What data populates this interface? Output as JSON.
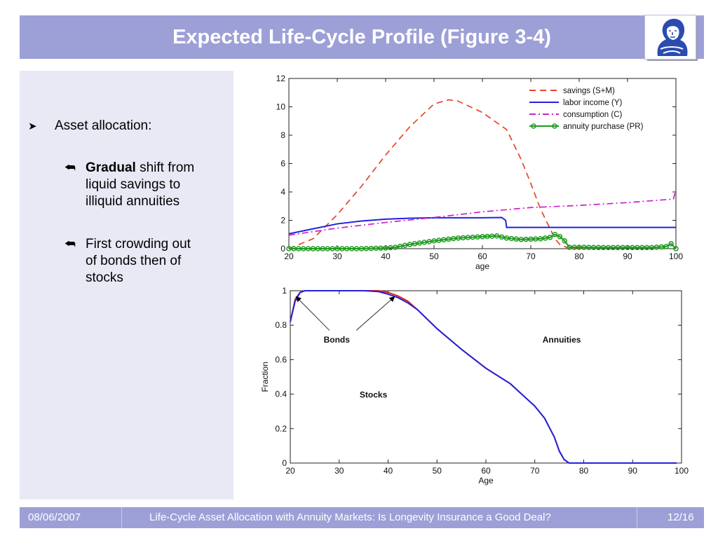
{
  "header": {
    "title": "Expected Life-Cycle Profile (Figure 3-4)",
    "logo_icon": "goethe-portrait-logo"
  },
  "sidebar": {
    "bullet": "Asset allocation:",
    "subbullets": [
      {
        "bold": "Gradual",
        "line1_rest": " shift from",
        "line2": "liquid savings to",
        "line3": "illiquid annuities"
      },
      {
        "line1": "First crowding out",
        "line2": "of bonds then of",
        "line3": "stocks"
      }
    ]
  },
  "footer": {
    "date": "08/06/2007",
    "title": "Life-Cycle Asset Allocation with Annuity Markets: Is Longevity Insurance a Good Deal?",
    "page": "12/16"
  },
  "chart_data": [
    {
      "type": "line",
      "xlabel": "age",
      "ylabel": "",
      "xlim": [
        20,
        100
      ],
      "ylim": [
        0,
        12
      ],
      "xticks": [
        "20",
        "30",
        "40",
        "50",
        "60",
        "70",
        "80",
        "90",
        "100"
      ],
      "yticks": [
        "0",
        "2",
        "4",
        "6",
        "8",
        "10",
        "12"
      ],
      "legend_position": "top-right",
      "series": [
        {
          "name": "savings (S+M)",
          "color": "#e8452a",
          "style": "dashed",
          "x": [
            20,
            25,
            30,
            35,
            40,
            45,
            50,
            53,
            55,
            60,
            65,
            68,
            70,
            72,
            75,
            76,
            78,
            80
          ],
          "y": [
            0,
            0.7,
            2.4,
            4.4,
            6.6,
            8.6,
            10.2,
            10.5,
            10.4,
            9.6,
            8.4,
            6.3,
            4.6,
            2.8,
            0.7,
            0.3,
            0,
            0
          ]
        },
        {
          "name": "labor income (Y)",
          "color": "#2222e0",
          "style": "solid",
          "x": [
            20,
            25,
            30,
            35,
            40,
            45,
            50,
            55,
            60,
            64,
            64.8,
            65,
            70,
            80,
            90,
            100
          ],
          "y": [
            1.05,
            1.4,
            1.75,
            1.95,
            2.08,
            2.15,
            2.18,
            2.18,
            2.18,
            2.2,
            2.0,
            1.5,
            1.5,
            1.5,
            1.5,
            1.5
          ]
        },
        {
          "name": "consumption (C)",
          "color": "#cc22cc",
          "style": "dashdot",
          "x": [
            20,
            30,
            40,
            50,
            60,
            70,
            80,
            90,
            99.5,
            100
          ],
          "y": [
            0.95,
            1.45,
            1.85,
            2.2,
            2.6,
            2.9,
            3.05,
            3.25,
            3.5,
            4.2
          ]
        },
        {
          "name": "annuity purchase (PR)",
          "color": "#1e9a1e",
          "style": "circles",
          "x": [
            20,
            25,
            30,
            35,
            40,
            42,
            45,
            50,
            55,
            60,
            63,
            65,
            68,
            72,
            74,
            75,
            76,
            77,
            78,
            80,
            85,
            90,
            95,
            98,
            99,
            100
          ],
          "y": [
            0,
            0,
            0,
            0,
            0.05,
            0.1,
            0.3,
            0.55,
            0.75,
            0.85,
            0.9,
            0.75,
            0.65,
            0.7,
            0.8,
            1.0,
            0.85,
            0.55,
            0.1,
            0.1,
            0.08,
            0.08,
            0.08,
            0.15,
            0.35,
            0
          ]
        }
      ]
    },
    {
      "type": "line",
      "xlabel": "Age",
      "ylabel": "Fraction",
      "xlim": [
        20,
        100
      ],
      "ylim": [
        0,
        1
      ],
      "xticks": [
        "20",
        "30",
        "40",
        "50",
        "60",
        "70",
        "80",
        "90",
        "100"
      ],
      "yticks": [
        "0",
        "0.2",
        "0.4",
        "0.6",
        "0.8",
        "1"
      ],
      "annotations": [
        "Bonds",
        "Annuities",
        "Stocks"
      ],
      "series": [
        {
          "color": "#dd2222",
          "x": [
            20,
            21,
            22,
            23,
            25,
            30,
            35,
            38,
            40,
            42,
            44,
            46,
            50,
            55,
            60,
            65,
            70,
            72,
            74,
            75,
            76,
            77,
            80,
            90,
            99
          ],
          "y": [
            0.82,
            0.95,
            0.99,
            1,
            1,
            1,
            1,
            1,
            0.99,
            0.97,
            0.94,
            0.89,
            0.78,
            0.66,
            0.55,
            0.46,
            0.33,
            0.26,
            0.15,
            0.07,
            0.02,
            0,
            0,
            0,
            0
          ]
        },
        {
          "color": "#2222dd",
          "x": [
            20,
            21,
            22,
            23,
            25,
            30,
            35,
            38,
            40,
            42,
            44,
            46,
            50,
            55,
            60,
            65,
            70,
            72,
            74,
            75,
            76,
            77,
            80,
            90,
            99
          ],
          "y": [
            0.82,
            0.94,
            0.99,
            1,
            1,
            1,
            1,
            0.995,
            0.98,
            0.96,
            0.93,
            0.89,
            0.78,
            0.66,
            0.55,
            0.46,
            0.33,
            0.26,
            0.15,
            0.07,
            0.02,
            0,
            0,
            0,
            0
          ]
        }
      ]
    }
  ]
}
